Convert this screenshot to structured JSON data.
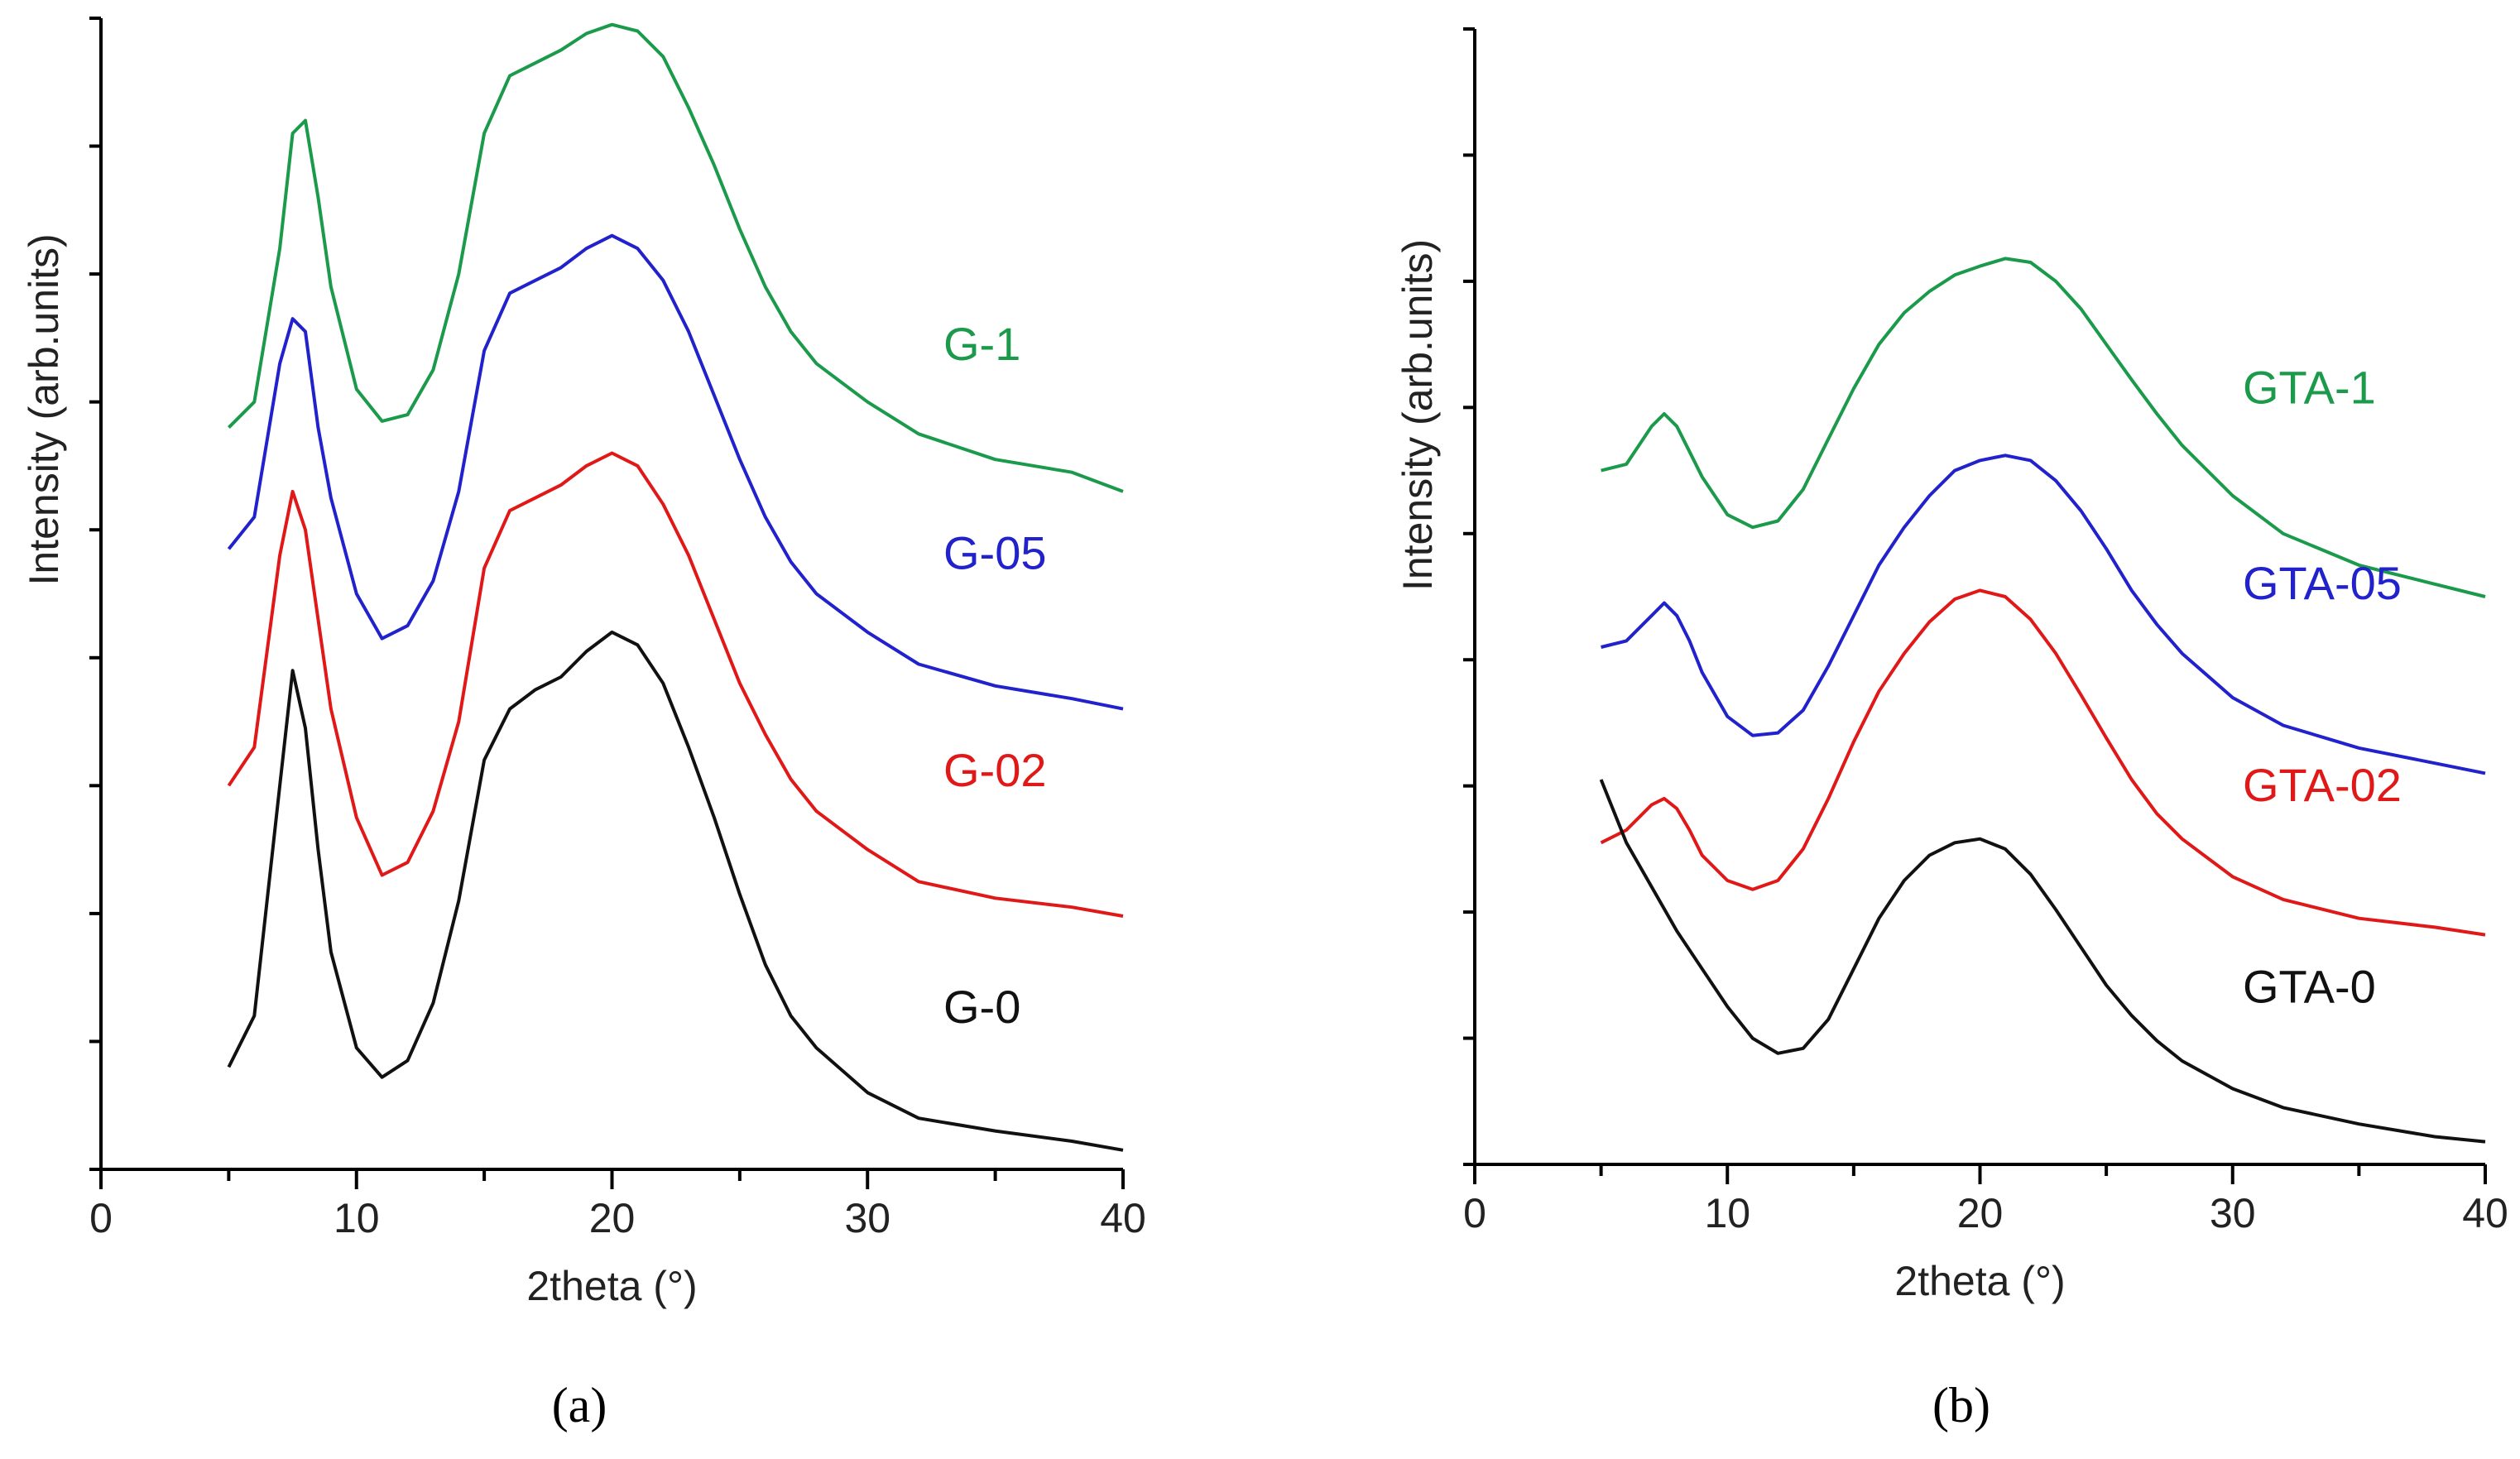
{
  "chart_data": [
    {
      "type": "line",
      "panel_label": "(a)",
      "panel_letter": "a",
      "xlabel": "2theta (°)",
      "ylabel": "Intensity (arb.units)",
      "xlim": [
        0,
        40
      ],
      "xticks": [
        0,
        10,
        20,
        30,
        40
      ],
      "ylim": [
        0,
        9
      ],
      "yticks_labeled": false,
      "grid": false,
      "series": [
        {
          "name": "G-1",
          "color": "#1a9a4a",
          "x": [
            5,
            6,
            7,
            7.5,
            8,
            8.5,
            9,
            10,
            11,
            12,
            13,
            14,
            15,
            16,
            17,
            18,
            19,
            20,
            21,
            22,
            23,
            24,
            25,
            26,
            27,
            28,
            30,
            32,
            35,
            38,
            40
          ],
          "y": [
            5.8,
            6.0,
            7.2,
            8.1,
            8.2,
            7.6,
            6.9,
            6.1,
            5.85,
            5.9,
            6.25,
            7.0,
            8.1,
            8.55,
            8.65,
            8.75,
            8.88,
            8.95,
            8.9,
            8.7,
            8.3,
            7.85,
            7.35,
            6.9,
            6.55,
            6.3,
            6.0,
            5.75,
            5.55,
            5.45,
            5.3
          ]
        },
        {
          "name": "G-05",
          "color": "#2222cc",
          "x": [
            5,
            6,
            7,
            7.5,
            8,
            8.5,
            9,
            10,
            11,
            12,
            13,
            14,
            15,
            16,
            17,
            18,
            19,
            20,
            21,
            22,
            23,
            24,
            25,
            26,
            27,
            28,
            30,
            32,
            35,
            38,
            40
          ],
          "y": [
            4.85,
            5.1,
            6.3,
            6.65,
            6.55,
            5.8,
            5.25,
            4.5,
            4.15,
            4.25,
            4.6,
            5.3,
            6.4,
            6.85,
            6.95,
            7.05,
            7.2,
            7.3,
            7.2,
            6.95,
            6.55,
            6.05,
            5.55,
            5.1,
            4.75,
            4.5,
            4.2,
            3.95,
            3.78,
            3.68,
            3.6
          ]
        },
        {
          "name": "G-02",
          "color": "#e01818",
          "x": [
            5,
            6,
            7,
            7.5,
            8,
            8.5,
            9,
            10,
            11,
            12,
            13,
            14,
            15,
            16,
            17,
            18,
            19,
            20,
            21,
            22,
            23,
            24,
            25,
            26,
            27,
            28,
            30,
            32,
            35,
            38,
            40
          ],
          "y": [
            3.0,
            3.3,
            4.8,
            5.3,
            5.0,
            4.3,
            3.6,
            2.75,
            2.3,
            2.4,
            2.8,
            3.5,
            4.7,
            5.15,
            5.25,
            5.35,
            5.5,
            5.6,
            5.5,
            5.2,
            4.8,
            4.3,
            3.8,
            3.4,
            3.05,
            2.8,
            2.5,
            2.25,
            2.12,
            2.05,
            1.98
          ]
        },
        {
          "name": "G-0",
          "color": "#111111",
          "x": [
            5,
            6,
            7,
            7.5,
            8,
            8.5,
            9,
            10,
            11,
            12,
            13,
            14,
            15,
            16,
            17,
            18,
            19,
            20,
            21,
            22,
            23,
            24,
            25,
            26,
            27,
            28,
            30,
            32,
            35,
            38,
            40
          ],
          "y": [
            0.8,
            1.2,
            3.0,
            3.9,
            3.45,
            2.5,
            1.7,
            0.95,
            0.72,
            0.85,
            1.3,
            2.1,
            3.2,
            3.6,
            3.75,
            3.85,
            4.05,
            4.2,
            4.1,
            3.8,
            3.3,
            2.75,
            2.15,
            1.6,
            1.2,
            0.95,
            0.6,
            0.4,
            0.3,
            0.22,
            0.15
          ]
        }
      ]
    },
    {
      "type": "line",
      "panel_label": "(b)",
      "panel_letter": "b",
      "xlabel": "2theta (°)",
      "ylabel": "Intensity (arb.units)",
      "xlim": [
        0,
        40
      ],
      "xticks": [
        0,
        10,
        20,
        30,
        40
      ],
      "ylim": [
        0,
        9
      ],
      "yticks_labeled": false,
      "grid": false,
      "series": [
        {
          "name": "GTA-1",
          "color": "#1a9a4a",
          "x": [
            5,
            6,
            7,
            7.5,
            8,
            8.5,
            9,
            10,
            11,
            12,
            13,
            14,
            15,
            16,
            17,
            18,
            19,
            20,
            21,
            22,
            23,
            24,
            25,
            26,
            27,
            28,
            30,
            32,
            35,
            38,
            40
          ],
          "y": [
            5.5,
            5.55,
            5.85,
            5.95,
            5.85,
            5.65,
            5.45,
            5.15,
            5.05,
            5.1,
            5.35,
            5.75,
            6.15,
            6.5,
            6.75,
            6.92,
            7.05,
            7.12,
            7.18,
            7.15,
            7.0,
            6.78,
            6.5,
            6.22,
            5.95,
            5.7,
            5.3,
            5.0,
            4.75,
            4.6,
            4.5
          ]
        },
        {
          "name": "GTA-05",
          "color": "#2222cc",
          "x": [
            5,
            6,
            7,
            7.5,
            8,
            8.5,
            9,
            10,
            11,
            12,
            13,
            14,
            15,
            16,
            17,
            18,
            19,
            20,
            21,
            22,
            23,
            24,
            25,
            26,
            27,
            28,
            30,
            32,
            35,
            38,
            40
          ],
          "y": [
            4.1,
            4.15,
            4.35,
            4.45,
            4.35,
            4.15,
            3.9,
            3.55,
            3.4,
            3.42,
            3.6,
            3.95,
            4.35,
            4.75,
            5.05,
            5.3,
            5.5,
            5.58,
            5.62,
            5.58,
            5.42,
            5.18,
            4.88,
            4.55,
            4.28,
            4.05,
            3.7,
            3.48,
            3.3,
            3.18,
            3.1
          ]
        },
        {
          "name": "GTA-02",
          "color": "#e01818",
          "x": [
            5,
            6,
            7,
            7.5,
            8,
            8.5,
            9,
            10,
            11,
            12,
            13,
            14,
            15,
            16,
            17,
            18,
            19,
            20,
            21,
            22,
            23,
            24,
            25,
            26,
            27,
            28,
            30,
            32,
            35,
            38,
            40
          ],
          "y": [
            2.55,
            2.65,
            2.85,
            2.9,
            2.82,
            2.65,
            2.45,
            2.25,
            2.18,
            2.25,
            2.5,
            2.9,
            3.35,
            3.75,
            4.05,
            4.3,
            4.48,
            4.55,
            4.5,
            4.32,
            4.05,
            3.72,
            3.38,
            3.05,
            2.78,
            2.58,
            2.28,
            2.1,
            1.95,
            1.88,
            1.82
          ]
        },
        {
          "name": "GTA-0",
          "color": "#111111",
          "x": [
            5,
            6,
            7,
            8,
            9,
            10,
            11,
            12,
            13,
            14,
            15,
            16,
            17,
            18,
            19,
            20,
            21,
            22,
            23,
            24,
            25,
            26,
            27,
            28,
            30,
            32,
            35,
            38,
            40
          ],
          "y": [
            3.05,
            2.55,
            2.2,
            1.85,
            1.55,
            1.25,
            1.0,
            0.88,
            0.92,
            1.15,
            1.55,
            1.95,
            2.25,
            2.45,
            2.55,
            2.58,
            2.5,
            2.3,
            2.02,
            1.72,
            1.42,
            1.18,
            0.98,
            0.82,
            0.6,
            0.45,
            0.32,
            0.22,
            0.18
          ]
        }
      ]
    }
  ]
}
